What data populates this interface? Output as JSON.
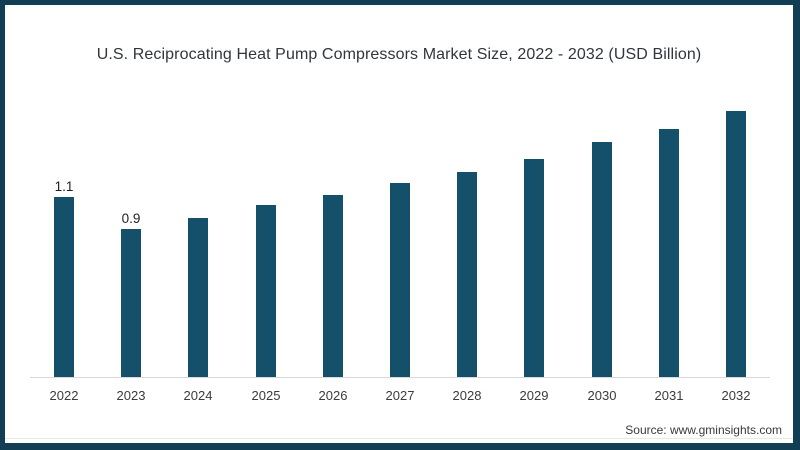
{
  "title": "U.S. Reciprocating Heat Pump Compressors Market Size, 2022 - 2032 (USD Billion)",
  "source": "Source: www.gminsights.com",
  "colors": {
    "bar": "#15506B",
    "frame_border": "#123E54",
    "axis_line": "#D9D9D9",
    "title_text": "#31363D",
    "tick_text": "#3B3B3B",
    "background": "#FFFFFF"
  },
  "chart_data": {
    "type": "bar",
    "title": "U.S. Reciprocating Heat Pump Compressors Market Size, 2022 - 2032 (USD Billion)",
    "categories": [
      "2022",
      "2023",
      "2024",
      "2025",
      "2026",
      "2027",
      "2028",
      "2029",
      "2030",
      "2031",
      "2032"
    ],
    "values": [
      1.1,
      0.9,
      0.97,
      1.05,
      1.11,
      1.18,
      1.25,
      1.33,
      1.43,
      1.51,
      1.62
    ],
    "data_labels": [
      "1.1",
      "0.9",
      "",
      "",
      "",
      "",
      "",
      "",
      "",
      "",
      ""
    ],
    "xlabel": "",
    "ylabel": "",
    "unit": "USD Billion",
    "ylim": [
      0,
      1.7
    ],
    "grid": false,
    "legend": false,
    "bar_color": "#15506B"
  }
}
